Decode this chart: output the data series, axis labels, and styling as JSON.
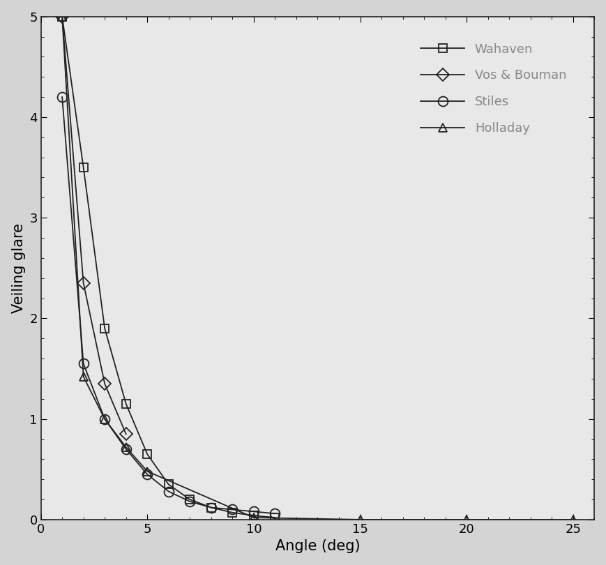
{
  "title": "",
  "xlabel": "Angle (deg)",
  "ylabel": "Veiling glare",
  "xlim": [
    0,
    26
  ],
  "ylim": [
    0,
    5
  ],
  "xticks": [
    0,
    5,
    10,
    15,
    20,
    25
  ],
  "yticks": [
    0,
    1,
    2,
    3,
    4,
    5
  ],
  "bg_color": "#e8e8e8",
  "plot_bg_color": "#e0e0e0",
  "series": [
    {
      "label": "Wahaven",
      "marker": "s",
      "color": "#222222",
      "x": [
        1,
        2,
        3,
        4,
        5,
        6,
        7,
        8,
        9,
        10,
        11
      ],
      "y": [
        5.0,
        3.5,
        1.9,
        1.15,
        0.65,
        0.35,
        0.2,
        0.12,
        0.07,
        0.04,
        0.02
      ]
    },
    {
      "label": "Vos & Bouman",
      "marker": "D",
      "color": "#222222",
      "x": [
        1,
        2,
        3,
        4
      ],
      "y": [
        5.0,
        2.35,
        1.35,
        0.85
      ]
    },
    {
      "label": "Stiles",
      "marker": "o",
      "color": "#222222",
      "x": [
        1,
        2,
        3,
        4,
        5,
        6,
        7,
        8,
        9,
        10,
        11
      ],
      "y": [
        4.2,
        1.55,
        1.0,
        0.7,
        0.45,
        0.28,
        0.18,
        0.12,
        0.1,
        0.08,
        0.06
      ]
    },
    {
      "label": "Holladay",
      "marker": "^",
      "color": "#222222",
      "x": [
        1,
        2,
        3,
        4,
        5,
        10,
        15,
        20,
        25
      ],
      "y": [
        5.0,
        1.42,
        1.0,
        0.72,
        0.48,
        0.02,
        0.0,
        0.0,
        0.0
      ]
    }
  ],
  "fontsize_labels": 15,
  "fontsize_ticks": 13,
  "fontsize_legend": 13,
  "markersizes": [
    9,
    9,
    10,
    9
  ]
}
